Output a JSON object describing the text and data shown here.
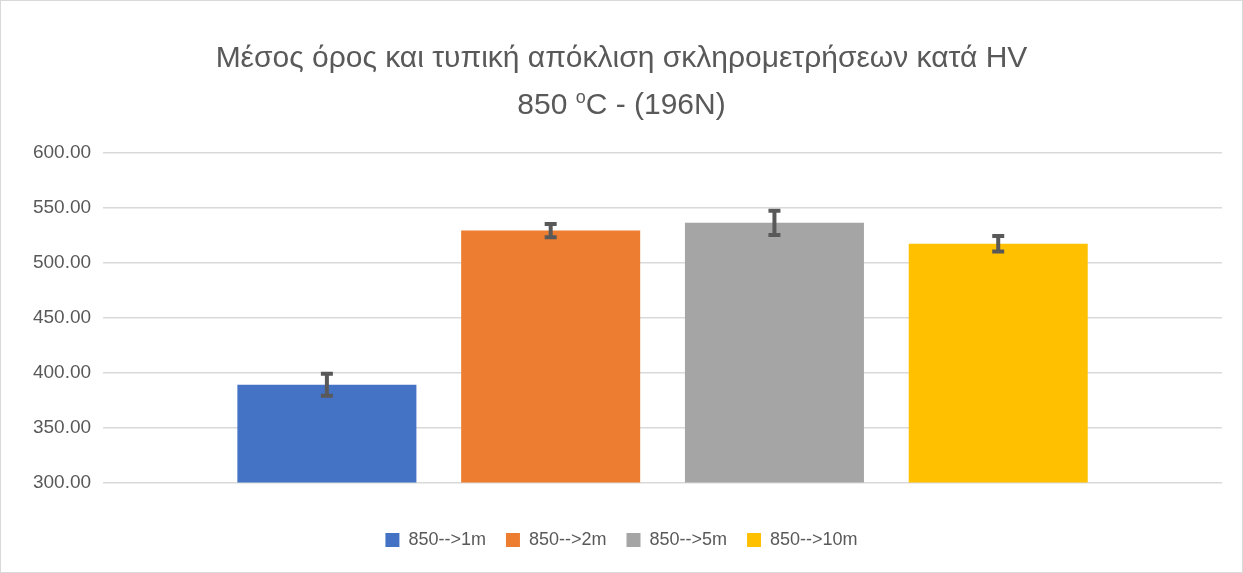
{
  "chart_data": {
    "type": "bar",
    "title": "Μέσος όρος και τυπική απόκλιση σκληρομετρήσεων κατά HV\n850 $^{o}$C - (196N)",
    "categories": [
      null
    ],
    "series": [
      {
        "name": "850-->1m",
        "color": "#4472c4",
        "values": [
          389
        ],
        "errors": [
          10
        ]
      },
      {
        "name": "850-->2m",
        "color": "#ed7d31",
        "values": [
          529
        ],
        "errors": [
          6
        ]
      },
      {
        "name": "850-->5m",
        "color": "#a5a5a5",
        "values": [
          536
        ],
        "errors": [
          11
        ]
      },
      {
        "name": "850-->10m",
        "color": "#ffc000",
        "values": [
          517
        ],
        "errors": [
          7
        ]
      }
    ],
    "ylim": [
      300,
      600
    ],
    "yticks": [
      {
        "value": 300,
        "label": "300.00"
      },
      {
        "value": 350,
        "label": "350.00"
      },
      {
        "value": 400,
        "label": "400.00"
      },
      {
        "value": 450,
        "label": "450.00"
      },
      {
        "value": 500,
        "label": "500.00"
      },
      {
        "value": 550,
        "label": "550.00"
      },
      {
        "value": 600,
        "label": "600.00"
      }
    ],
    "grid": "y",
    "legend": "bottom"
  }
}
